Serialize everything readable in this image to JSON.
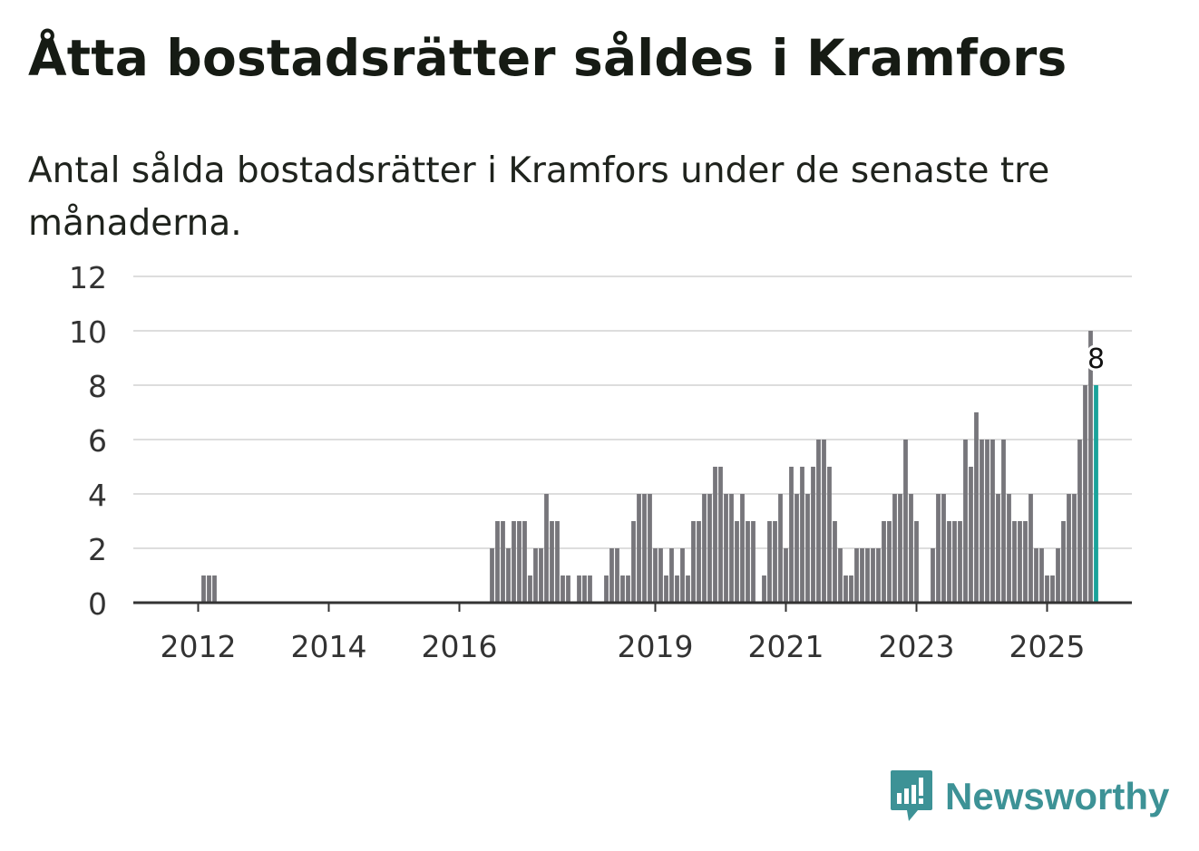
{
  "title": "Åtta bostadsrätter såldes i Kramfors",
  "subtitle": "Antal sålda bostadsrätter i Kramfors under de senaste tre månaderna.",
  "brand": {
    "name": "Newsworthy",
    "color": "#3d9296"
  },
  "colors": {
    "bar": "#77767b",
    "highlight": "#1aa39b",
    "grid": "#dddddd",
    "axis": "#333333"
  },
  "chart_data": {
    "type": "bar",
    "title": "Åtta bostadsrätter såldes i Kramfors",
    "xlabel": "",
    "ylabel": "",
    "ylim": [
      0,
      12
    ],
    "yticks": [
      0,
      2,
      4,
      6,
      8,
      10,
      12
    ],
    "x_start": {
      "year": 2011,
      "month": 1
    },
    "x_ticks": [
      {
        "label": "2012",
        "index": 12
      },
      {
        "label": "2014",
        "index": 36
      },
      {
        "label": "2016",
        "index": 60
      },
      {
        "label": "2019",
        "index": 96
      },
      {
        "label": "2021",
        "index": 120
      },
      {
        "label": "2023",
        "index": 144
      },
      {
        "label": "2025",
        "index": 168
      }
    ],
    "values": [
      0,
      0,
      0,
      0,
      0,
      0,
      0,
      0,
      0,
      0,
      0,
      0,
      0,
      1,
      1,
      1,
      0,
      0,
      0,
      0,
      0,
      0,
      0,
      0,
      0,
      0,
      0,
      0,
      0,
      0,
      0,
      0,
      0,
      0,
      0,
      0,
      0,
      0,
      0,
      0,
      0,
      0,
      0,
      0,
      0,
      0,
      0,
      0,
      0,
      0,
      0,
      0,
      0,
      0,
      0,
      0,
      0,
      0,
      0,
      0,
      0,
      0,
      0,
      0,
      0,
      0,
      2,
      3,
      3,
      2,
      3,
      3,
      3,
      1,
      2,
      2,
      4,
      3,
      3,
      1,
      1,
      0,
      1,
      1,
      1,
      0,
      0,
      1,
      2,
      2,
      1,
      1,
      3,
      4,
      4,
      4,
      2,
      2,
      1,
      2,
      1,
      2,
      1,
      3,
      3,
      4,
      4,
      5,
      5,
      4,
      4,
      3,
      4,
      3,
      3,
      0,
      1,
      3,
      3,
      4,
      2,
      5,
      4,
      5,
      4,
      5,
      6,
      6,
      5,
      3,
      2,
      1,
      1,
      2,
      2,
      2,
      2,
      2,
      3,
      3,
      4,
      4,
      6,
      4,
      3,
      0,
      0,
      2,
      4,
      4,
      3,
      3,
      3,
      6,
      5,
      7,
      6,
      6,
      6,
      4,
      6,
      4,
      3,
      3,
      3,
      4,
      2,
      2,
      1,
      1,
      2,
      3,
      4,
      4,
      6,
      8,
      10,
      8
    ],
    "highlight_index": 177,
    "highlight_label": "8"
  }
}
